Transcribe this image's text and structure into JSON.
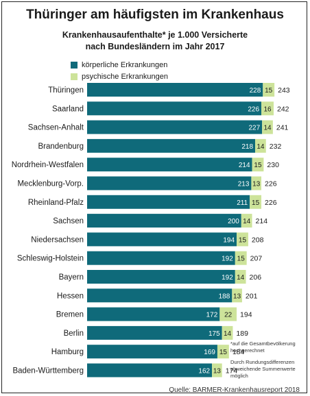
{
  "title": "Thüringer am häufigsten im Krankenhaus",
  "subtitle_line1": "Krankenhausaufenthalte* je 1.000 Versicherte",
  "subtitle_line2": "nach Bundesländern im Jahr 2017",
  "footnote1": "*auf die Gesamtbevöl­kerung hochgerechnet",
  "footnote2": "Durch Rundungsdiffe­renzen abweichende Summenwerte möglich",
  "source": "Quelle: BARMER-Krankenhausreport 2018",
  "colors": {
    "koerperlich": "#0f6a7a",
    "psychisch": "#cde39a",
    "text": "#1a1a1a"
  },
  "chart_data": {
    "type": "bar",
    "orientation": "horizontal",
    "stacked": true,
    "legend_position": "top-left",
    "categories": [
      "Thüringen",
      "Saarland",
      "Sachsen-Anhalt",
      "Brandenburg",
      "Nordrhein-Westfalen",
      "Mecklenburg-Vorp.",
      "Rheinland-Pfalz",
      "Sachsen",
      "Niedersachsen",
      "Schleswig-Holstein",
      "Bayern",
      "Hessen",
      "Bremen",
      "Berlin",
      "Hamburg",
      "Baden-Württemberg"
    ],
    "series": [
      {
        "name": "körperliche Erkrankungen",
        "values": [
          228,
          226,
          227,
          218,
          214,
          213,
          211,
          200,
          194,
          192,
          192,
          188,
          172,
          175,
          169,
          162
        ]
      },
      {
        "name": "psychische Erkrankungen",
        "values": [
          15,
          16,
          14,
          14,
          15,
          13,
          15,
          14,
          15,
          15,
          14,
          13,
          22,
          14,
          15,
          13
        ]
      }
    ],
    "totals": [
      243,
      242,
      241,
      232,
      230,
      226,
      226,
      214,
      208,
      207,
      206,
      201,
      194,
      189,
      184,
      174
    ]
  }
}
